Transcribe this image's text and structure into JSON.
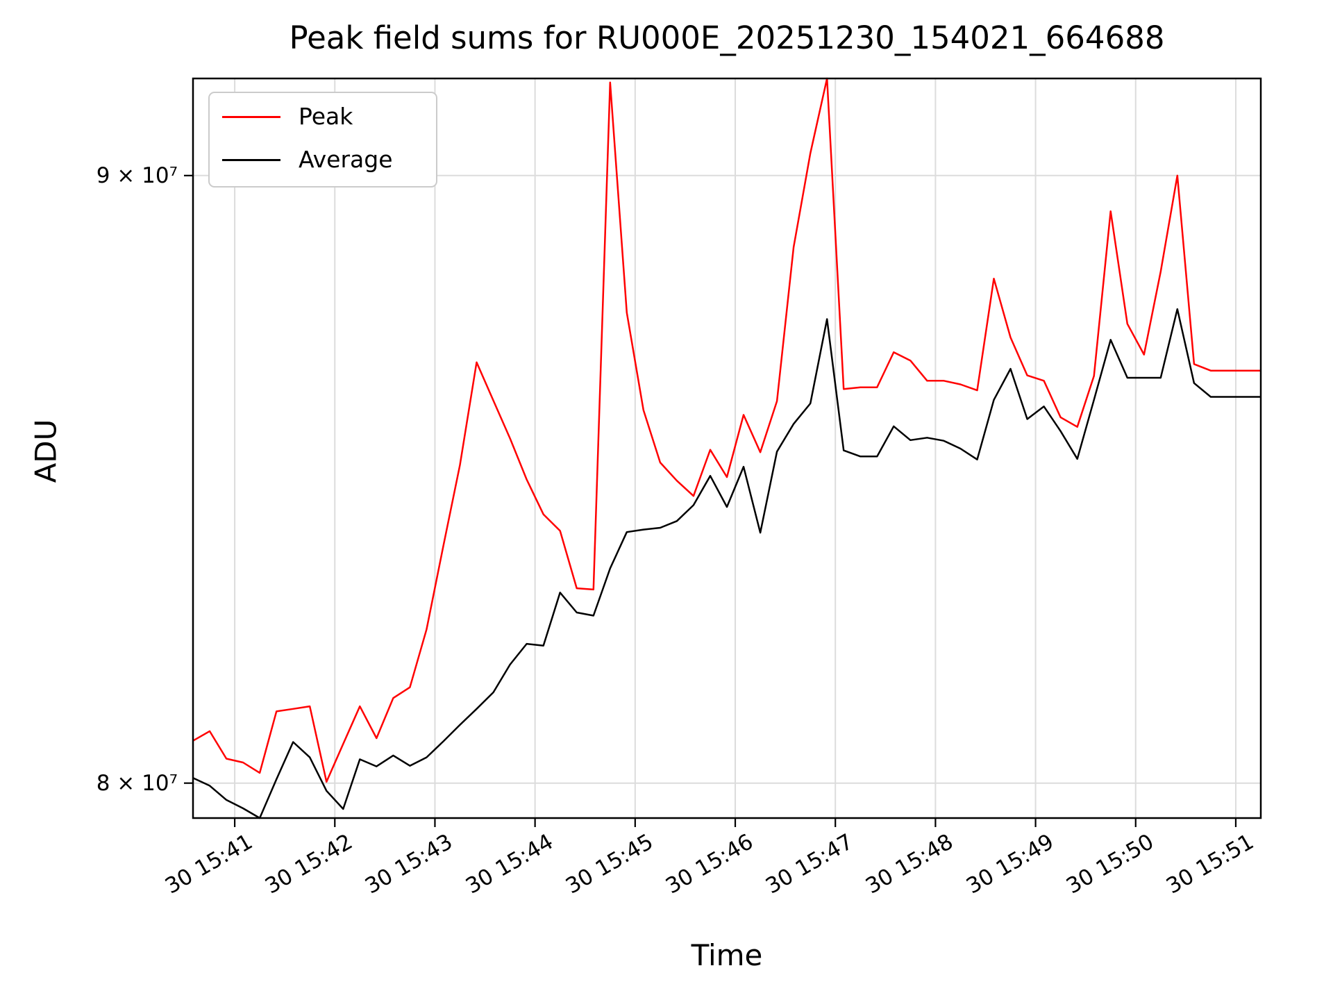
{
  "figure": {
    "title": "Peak field sums for RU000E_20251230_154021_664688",
    "background": "#ffffff"
  },
  "axes": {
    "xlabel": "Time",
    "ylabel": "ADU",
    "grid_color": "#dcdcdc",
    "spine_color": "#000000",
    "yticks": [
      {
        "label": "9 × 10⁷",
        "value": 90000000
      },
      {
        "label": "8 × 10⁷",
        "value": 80000000
      }
    ],
    "xticks": [
      {
        "label": "30 15:41",
        "time": "15:41:00"
      },
      {
        "label": "30 15:42",
        "time": "15:42:00"
      },
      {
        "label": "30 15:43",
        "time": "15:43:00"
      },
      {
        "label": "30 15:44",
        "time": "15:44:00"
      },
      {
        "label": "30 15:45",
        "time": "15:45:00"
      },
      {
        "label": "30 15:46",
        "time": "15:46:00"
      },
      {
        "label": "30 15:47",
        "time": "15:47:00"
      },
      {
        "label": "30 15:48",
        "time": "15:48:00"
      },
      {
        "label": "30 15:49",
        "time": "15:49:00"
      },
      {
        "label": "30 15:50",
        "time": "15:50:00"
      },
      {
        "label": "30 15:51",
        "time": "15:51:00"
      }
    ]
  },
  "legend": {
    "position": "upper left",
    "entries": [
      {
        "label": "Peak",
        "color": "#ff0000"
      },
      {
        "label": "Average",
        "color": "#000000"
      }
    ]
  },
  "chart_data": {
    "type": "line",
    "title": "Peak field sums for RU000E_20251230_154021_664688",
    "xlabel": "Time",
    "ylabel": "ADU",
    "yscale": "log",
    "grid": true,
    "legend_position": "upper left",
    "xlim": [
      "15:40:35",
      "15:51:15"
    ],
    "ylim": [
      79460000,
      91710000
    ],
    "x": [
      "15:40:35",
      "15:40:45",
      "15:40:55",
      "15:41:05",
      "15:41:15",
      "15:41:25",
      "15:41:35",
      "15:41:45",
      "15:41:55",
      "15:42:05",
      "15:42:15",
      "15:42:25",
      "15:42:35",
      "15:42:45",
      "15:42:55",
      "15:43:05",
      "15:43:15",
      "15:43:25",
      "15:43:35",
      "15:43:45",
      "15:43:55",
      "15:44:05",
      "15:44:15",
      "15:44:25",
      "15:44:35",
      "15:44:45",
      "15:44:55",
      "15:45:05",
      "15:45:15",
      "15:45:25",
      "15:45:35",
      "15:45:45",
      "15:45:55",
      "15:46:05",
      "15:46:15",
      "15:46:25",
      "15:46:35",
      "15:46:45",
      "15:46:55",
      "15:47:05",
      "15:47:15",
      "15:47:25",
      "15:47:35",
      "15:47:45",
      "15:47:55",
      "15:48:05",
      "15:48:15",
      "15:48:25",
      "15:48:35",
      "15:48:45",
      "15:48:55",
      "15:49:05",
      "15:49:15",
      "15:49:25",
      "15:49:35",
      "15:49:45",
      "15:49:55",
      "15:50:05",
      "15:50:15",
      "15:50:25",
      "15:50:35",
      "15:50:45",
      "15:50:55",
      "15:51:05",
      "15:51:15"
    ],
    "series": [
      {
        "name": "Peak",
        "color": "#ff0000",
        "values": [
          80660000,
          80810000,
          80380000,
          80320000,
          80160000,
          81120000,
          81160000,
          81200000,
          80020000,
          80610000,
          81200000,
          80700000,
          81330000,
          81500000,
          82420000,
          83760000,
          85090000,
          86800000,
          86160000,
          85530000,
          84850000,
          84280000,
          84010000,
          83080000,
          83060000,
          91640000,
          87640000,
          86000000,
          85130000,
          84830000,
          84580000,
          85340000,
          84890000,
          85920000,
          85300000,
          86150000,
          88760000,
          90390000,
          91710000,
          86350000,
          86380000,
          86380000,
          86970000,
          86830000,
          86490000,
          86490000,
          86430000,
          86330000,
          88220000,
          87220000,
          86580000,
          86490000,
          85880000,
          85720000,
          86570000,
          89380000,
          87450000,
          86930000,
          88340000,
          90000000,
          86770000,
          86660000,
          86660000,
          86660000,
          86660000
        ]
      },
      {
        "name": "Average",
        "color": "#000000",
        "values": [
          80080000,
          79960000,
          79740000,
          79610000,
          79460000,
          80060000,
          80640000,
          80400000,
          79880000,
          79600000,
          80370000,
          80260000,
          80430000,
          80270000,
          80400000,
          80650000,
          80910000,
          81160000,
          81420000,
          81860000,
          82190000,
          82160000,
          83010000,
          82690000,
          82640000,
          83400000,
          83990000,
          84030000,
          84060000,
          84170000,
          84430000,
          84910000,
          84400000,
          85060000,
          83980000,
          85310000,
          85770000,
          86110000,
          87530000,
          85330000,
          85230000,
          85230000,
          85730000,
          85500000,
          85540000,
          85490000,
          85360000,
          85180000,
          86170000,
          86690000,
          85850000,
          86060000,
          85650000,
          85190000,
          86170000,
          87180000,
          86540000,
          86540000,
          86540000,
          87700000,
          86450000,
          86220000,
          86220000,
          86220000,
          86220000
        ]
      }
    ]
  }
}
